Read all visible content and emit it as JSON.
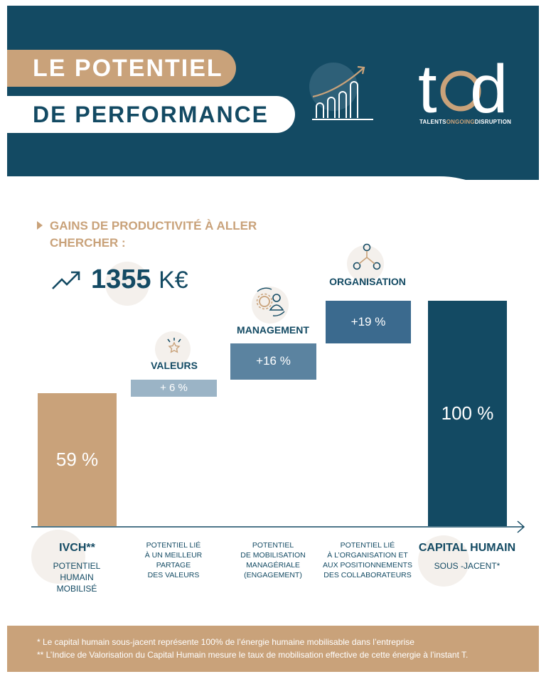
{
  "header": {
    "title_line1": "LE POTENTIEL",
    "title_line2": "DE PERFORMANCE",
    "logo_text": "tod",
    "logo_subtitle_a": "TALENTS",
    "logo_subtitle_b": "ONGOING",
    "logo_subtitle_c": "DISRUPTION",
    "chart_icon": "growth-bars-icon"
  },
  "intro": {
    "gains_line1": "GAINS DE PRODUCTIVITÉ À ALLER",
    "gains_line2": "CHERCHER :",
    "amount": "1355",
    "amount_unit": "K€",
    "trend_icon": "trend-up-icon"
  },
  "chart_data": {
    "type": "bar",
    "subtype": "waterfall",
    "categories": [
      "IVCH**",
      "VALEURS",
      "MANAGEMENT",
      "ORGANISATION",
      "CAPITAL HUMAIN"
    ],
    "values": [
      59,
      6,
      16,
      19,
      100
    ],
    "cumulative_base": [
      0,
      59,
      65,
      81,
      0
    ],
    "value_labels": [
      "59 %",
      "+ 6 %",
      "+16 %",
      "+19 %",
      "100 %"
    ],
    "descriptions": [
      [
        "POTENTIEL",
        "HUMAIN",
        "MOBILISÉ"
      ],
      [
        "POTENTIEL LIÉ",
        "À UN MEILLEUR",
        "PARTAGE",
        "DES VALEURS"
      ],
      [
        "POTENTIEL",
        "DE MOBILISATION",
        "MANAGÉRIALE",
        "(ENGAGEMENT)"
      ],
      [
        "POTENTIEL LIÉ",
        "À L’ORGANISATION ET",
        "AUX POSITIONNEMENTS",
        "DES COLLABORATEURS"
      ],
      [
        "SOUS -JACENT*"
      ]
    ],
    "colors": [
      "#c9a27a",
      "#9bb4c6",
      "#5b83a0",
      "#3b6a8e",
      "#134a63"
    ],
    "icons": [
      "",
      "star-icon",
      "gear-person-icon",
      "network-icon",
      ""
    ],
    "ylim": [
      0,
      100
    ]
  },
  "footer": {
    "note1": "*  Le capital humain sous-jacent représente 100% de l’énergie humaine mobilisable dans l’entreprise",
    "note2": "** L’Indice de Valorisation du Capital Humain mesure le taux de mobilisation effective de cette énergie à l’instant T."
  },
  "colors": {
    "navy": "#134a63",
    "gold": "#c9a27a",
    "light_blue": "#9bb4c6",
    "mid_blue": "#5b83a0",
    "steel_blue": "#3b6a8e"
  }
}
